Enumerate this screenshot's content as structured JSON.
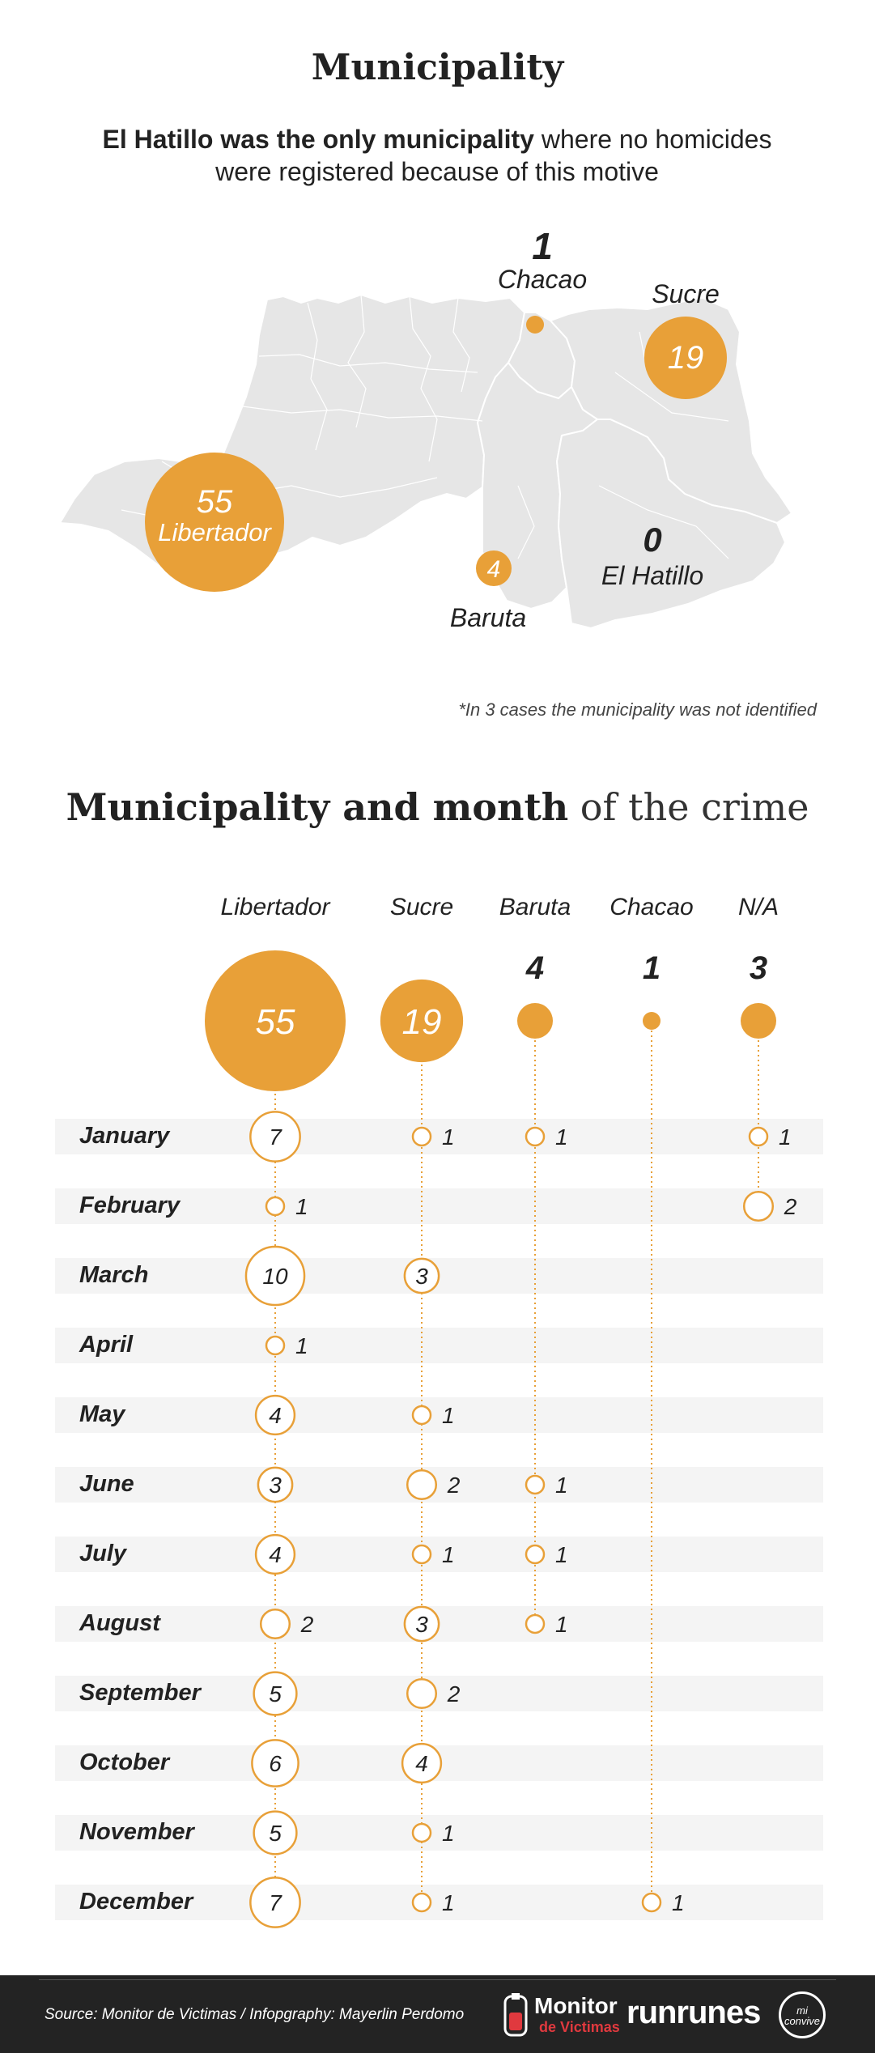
{
  "title": "Municipality",
  "subtitle": {
    "bold": "El Hatillo was the only municipality",
    "rest": " where no homicides were registered because of this motive"
  },
  "map": {
    "municipalities": [
      {
        "name": "Chacao",
        "value": "1"
      },
      {
        "name": "Sucre",
        "value": "19"
      },
      {
        "name": "Libertador",
        "value": "55"
      },
      {
        "name": "Baruta",
        "value": "4"
      },
      {
        "name": "El Hatillo",
        "value": "0"
      }
    ]
  },
  "footnote": "*In 3 cases the municipality was not identified",
  "section2": {
    "title_bold": "Municipality and month",
    "title_light": " of the crime"
  },
  "colors": {
    "accent": "#E8A038",
    "map_fill": "#E6E6E6",
    "row_band": "#F4F4F4",
    "footer_bg": "#232323"
  },
  "chart_data": {
    "type": "table",
    "title": "Municipality and month of the crime",
    "columns": [
      "Libertador",
      "Sucre",
      "Baruta",
      "Chacao",
      "N/A"
    ],
    "totals": [
      55,
      19,
      4,
      1,
      3
    ],
    "total_labels": [
      "55",
      "19",
      "4",
      "1",
      "3"
    ],
    "rows": [
      {
        "month": "January",
        "values": [
          7,
          1,
          1,
          null,
          1
        ]
      },
      {
        "month": "February",
        "values": [
          1,
          null,
          null,
          null,
          2
        ]
      },
      {
        "month": "March",
        "values": [
          10,
          3,
          null,
          null,
          null
        ]
      },
      {
        "month": "April",
        "values": [
          1,
          null,
          null,
          null,
          null
        ]
      },
      {
        "month": "May",
        "values": [
          4,
          1,
          null,
          null,
          null
        ]
      },
      {
        "month": "June",
        "values": [
          3,
          2,
          1,
          null,
          null
        ]
      },
      {
        "month": "July",
        "values": [
          4,
          1,
          1,
          null,
          null
        ]
      },
      {
        "month": "August",
        "values": [
          2,
          3,
          1,
          null,
          null
        ]
      },
      {
        "month": "September",
        "values": [
          5,
          2,
          null,
          null,
          null
        ]
      },
      {
        "month": "October",
        "values": [
          6,
          4,
          null,
          null,
          null
        ]
      },
      {
        "month": "November",
        "values": [
          5,
          1,
          null,
          null,
          null
        ]
      },
      {
        "month": "December",
        "values": [
          7,
          1,
          null,
          1,
          null
        ]
      }
    ]
  },
  "footer": {
    "source": "Source: Monitor de Victimas / Infopgraphy: Mayerlin Perdomo",
    "logo1_line1": "Monitor",
    "logo1_line2": "de Victimas",
    "logo2": "runrunes",
    "logo3_line1": "mi",
    "logo3_line2": "convive"
  }
}
